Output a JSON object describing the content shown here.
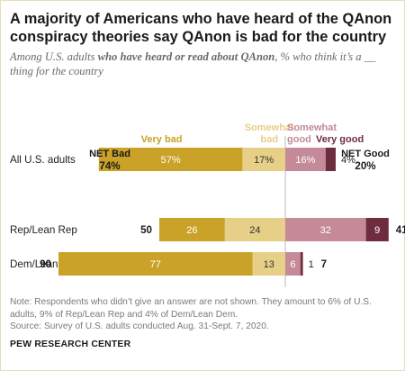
{
  "title": "A majority of Americans who have heard of the QAnon conspiracy theories say QAnon is bad for the country",
  "subtitle_pre": "Among U.S. adults ",
  "subtitle_bold": "who have heard or read about QAnon",
  "subtitle_post": ", % who think it’s a __ thing for the country",
  "note": "Note: Respondents who didn’t give an answer are not shown. They amount to 6% of U.S. adults, 9% of Rep/Lean Rep and 4% of Dem/Lean Dem.",
  "source": "Source: Survey of U.S. adults conducted Aug. 31-Sept. 7, 2020.",
  "brand": "PEW RESEARCH CENTER",
  "chart_data": {
    "type": "bar",
    "orientation": "horizontal",
    "stacked": "diverging",
    "categories": [
      "All U.S. adults",
      "Rep/Lean Rep",
      "Dem/Lean Dem"
    ],
    "series": [
      {
        "name": "Very bad",
        "side": "bad",
        "color": "#c9a227",
        "values": [
          57,
          26,
          77
        ],
        "labels": [
          "57%",
          "26",
          "77"
        ]
      },
      {
        "name": "Somewhat bad",
        "side": "bad",
        "color": "#e6cf86",
        "values": [
          17,
          24,
          13
        ],
        "labels": [
          "17%",
          "24",
          "13"
        ]
      },
      {
        "name": "Somewhat good",
        "side": "good",
        "color": "#c48a98",
        "values": [
          16,
          32,
          6
        ],
        "labels": [
          "16%",
          "32",
          "6"
        ]
      },
      {
        "name": "Very good",
        "side": "good",
        "color": "#6e2c3f",
        "values": [
          4,
          9,
          1
        ],
        "labels": [
          "4%",
          "9",
          "1"
        ]
      }
    ],
    "legend_lines": [
      [
        "Very bad"
      ],
      [
        "Somewhat",
        "bad"
      ],
      [
        "Somewhat",
        "good"
      ],
      [
        "Very good"
      ]
    ],
    "net_bad": {
      "header": "NET Bad",
      "labels": [
        "74%",
        "50",
        "90"
      ]
    },
    "net_good": {
      "header": "NET Good",
      "labels": [
        "20%",
        "41",
        "7"
      ]
    },
    "axis": {
      "center": 0,
      "bad_max": 90,
      "good_max": 41
    },
    "grid": false,
    "legend_placement": "top"
  }
}
